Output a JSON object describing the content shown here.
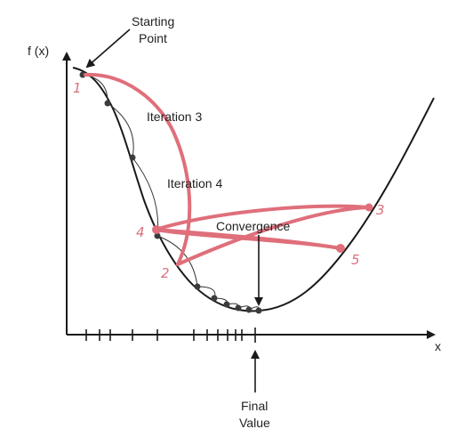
{
  "labels": {
    "y_axis": "f (x)",
    "x_axis": "x",
    "starting_point_line1": "Starting",
    "starting_point_line2": "Point",
    "iteration3": "Iteration 3",
    "iteration4": "Iteration 4",
    "convergence": "Convergence",
    "final_value_line1": "Final",
    "final_value_line2": "Value"
  },
  "handwritten_numbers": [
    "1",
    "2",
    "3",
    "4",
    "5"
  ],
  "colors": {
    "curve": "#1a1a1a",
    "axis": "#1a1a1a",
    "overlay": "#df6f7b",
    "points": "#3c3c3c"
  }
}
